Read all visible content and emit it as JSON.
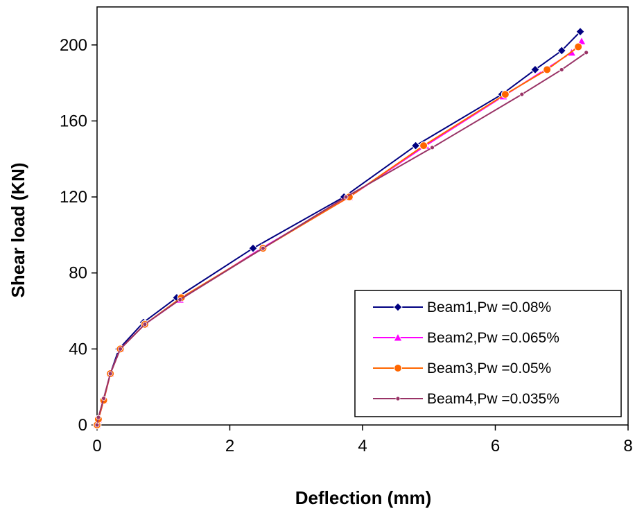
{
  "chart_data": {
    "type": "line",
    "xlabel": "Deflection (mm)",
    "ylabel": "Shear load (KN)",
    "xlim": [
      0,
      8
    ],
    "ylim": [
      0,
      220
    ],
    "xticks": [
      0,
      2,
      4,
      6,
      8
    ],
    "yticks": [
      0,
      40,
      80,
      120,
      160,
      200
    ],
    "grid": false,
    "legend_position": "bottom-right",
    "series": [
      {
        "name": "Beam1,Pw =0.08%",
        "color": "#000080",
        "marker": "diamond",
        "x": [
          0,
          0.02,
          0.1,
          0.2,
          0.33,
          0.7,
          1.2,
          2.35,
          3.72,
          4.8,
          6.1,
          6.6,
          7.0,
          7.28
        ],
        "y": [
          0,
          3,
          13,
          27,
          40,
          54,
          67,
          93,
          120,
          147,
          174,
          187,
          197,
          207
        ]
      },
      {
        "name": "Beam2,Pw =0.065%",
        "color": "#FF00FF",
        "marker": "triangle",
        "x": [
          0,
          0.02,
          0.1,
          0.2,
          0.35,
          0.72,
          1.25,
          2.48,
          3.8,
          4.95,
          6.12,
          6.75,
          7.15,
          7.3
        ],
        "y": [
          0,
          3,
          13,
          27,
          40,
          53,
          66,
          93,
          120,
          147,
          173,
          187,
          196,
          202
        ]
      },
      {
        "name": "Beam3,Pw =0.05%",
        "color": "#FF6600",
        "marker": "circle",
        "x": [
          0,
          0.02,
          0.1,
          0.2,
          0.35,
          0.72,
          1.27,
          2.5,
          3.8,
          4.92,
          6.15,
          6.78,
          7.25
        ],
        "y": [
          0,
          3,
          13,
          27,
          40,
          53,
          67,
          93,
          120,
          147,
          174,
          187,
          199
        ]
      },
      {
        "name": "Beam4,Pw =0.035%",
        "color": "#993366",
        "marker": "small-circle",
        "x": [
          0,
          0.02,
          0.1,
          0.2,
          0.35,
          0.72,
          1.25,
          2.5,
          3.75,
          5.05,
          6.4,
          7.0,
          7.37
        ],
        "y": [
          0,
          4,
          14,
          27,
          40,
          53,
          66,
          93,
          120,
          146,
          174,
          187,
          196
        ]
      }
    ]
  }
}
